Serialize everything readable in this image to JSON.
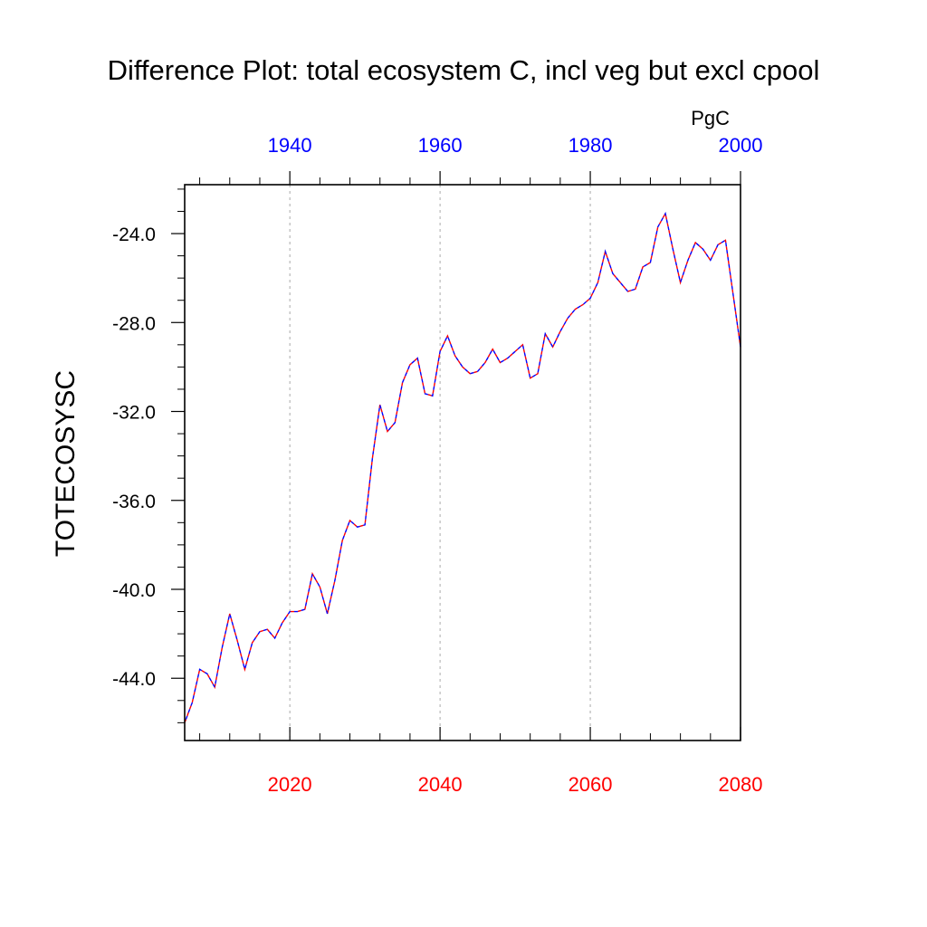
{
  "chart_data": {
    "type": "line",
    "title": "Difference Plot: total ecosystem C, incl veg but excl cpool",
    "ylabel": "TOTECOSYSC",
    "units": "PgC",
    "ylim": [
      -46.8,
      -21.8
    ],
    "yticks": [
      -44,
      -40,
      -36,
      -32,
      -28,
      -24
    ],
    "ytick_labels": [
      "-44.0",
      "-40.0",
      "-36.0",
      "-32.0",
      "-28.0",
      "-24.0"
    ],
    "x_bottom": {
      "range": [
        2006,
        2080
      ],
      "ticks": [
        2020,
        2040,
        2060,
        2080
      ],
      "labels": [
        "2020",
        "2040",
        "2060",
        "2080"
      ],
      "color": "#ff0000"
    },
    "x_top": {
      "range": [
        1926,
        2000
      ],
      "ticks": [
        1940,
        1960,
        1980,
        2000
      ],
      "labels": [
        "1940",
        "1960",
        "1980",
        "2000"
      ],
      "color": "#0000ff"
    },
    "grid": "dotted vertical at bottom-axis ticks",
    "series": [
      {
        "name": "difference",
        "colors": [
          "#ff0000",
          "#0000ff"
        ],
        "x": [
          2006,
          2007,
          2008,
          2009,
          2010,
          2011,
          2012,
          2013,
          2014,
          2015,
          2016,
          2017,
          2018,
          2019,
          2020,
          2021,
          2022,
          2023,
          2024,
          2025,
          2026,
          2027,
          2028,
          2029,
          2030,
          2031,
          2032,
          2033,
          2034,
          2035,
          2036,
          2037,
          2038,
          2039,
          2040,
          2041,
          2042,
          2043,
          2044,
          2045,
          2046,
          2047,
          2048,
          2049,
          2050,
          2051,
          2052,
          2053,
          2054,
          2055,
          2056,
          2057,
          2058,
          2059,
          2060,
          2061,
          2062,
          2063,
          2064,
          2065,
          2066,
          2067,
          2068,
          2069,
          2070,
          2071,
          2072,
          2073,
          2074,
          2075,
          2076,
          2077,
          2078,
          2079,
          2080
        ],
        "values": [
          -46.0,
          -45.1,
          -43.6,
          -43.8,
          -44.4,
          -42.6,
          -41.1,
          -42.3,
          -43.6,
          -42.4,
          -41.9,
          -41.8,
          -42.2,
          -41.5,
          -41.0,
          -41.0,
          -40.9,
          -39.3,
          -39.9,
          -41.1,
          -39.6,
          -37.8,
          -36.9,
          -37.2,
          -37.1,
          -34.1,
          -31.7,
          -32.9,
          -32.5,
          -30.7,
          -29.9,
          -29.6,
          -31.2,
          -31.3,
          -29.3,
          -28.6,
          -29.5,
          -30.0,
          -30.3,
          -30.2,
          -29.8,
          -29.2,
          -29.8,
          -29.6,
          -29.3,
          -29.0,
          -30.5,
          -30.3,
          -28.5,
          -29.1,
          -28.4,
          -27.8,
          -27.4,
          -27.2,
          -26.9,
          -26.2,
          -24.8,
          -25.8,
          -26.2,
          -26.6,
          -26.5,
          -25.5,
          -25.3,
          -23.7,
          -23.1,
          -24.7,
          -26.2,
          -25.2,
          -24.4,
          -24.7,
          -25.2,
          -24.5,
          -24.3,
          -26.7,
          -29.1
        ]
      }
    ]
  }
}
